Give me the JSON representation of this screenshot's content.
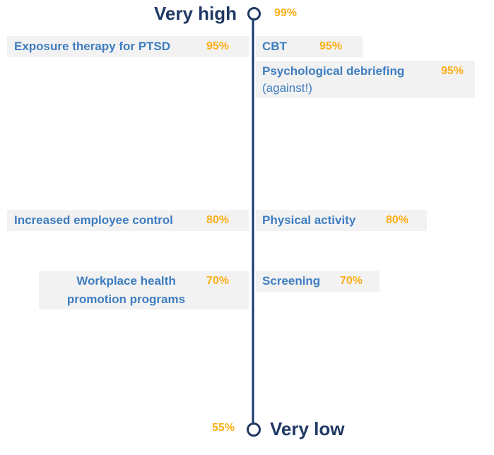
{
  "colors": {
    "navy": "#1F3864",
    "blue": "#3E7DC1",
    "orange": "#FCAE17",
    "row_background": "#F2F2F2"
  },
  "scale": {
    "top_label": "Very high",
    "top_value": "99%",
    "bottom_label": "Very low",
    "bottom_value": "55%"
  },
  "items": [
    {
      "label": "Exposure therapy for PTSD",
      "value": "95%",
      "side": "left"
    },
    {
      "label": "CBT",
      "value": "95%",
      "side": "right"
    },
    {
      "label": "Psychological debriefing",
      "note": "(against!)",
      "value": "95%",
      "side": "right"
    },
    {
      "label": "Increased employee control",
      "value": "80%",
      "side": "left"
    },
    {
      "label": "Physical activity",
      "value": "80%",
      "side": "right"
    },
    {
      "label": "Workplace health",
      "label_line2": "promotion programs",
      "value": "70%",
      "side": "left"
    },
    {
      "label": "Screening",
      "value": "70%",
      "side": "right"
    }
  ],
  "chart_data": {
    "type": "scatter",
    "title": "",
    "orientation": "vertical-axis-ladder",
    "axis_top_label": "Very high",
    "axis_bottom_label": "Very low",
    "value_range": [
      55,
      99
    ],
    "axis_top_value": 99,
    "axis_bottom_value": 55,
    "grid": false,
    "legend": "none",
    "points": [
      {
        "label": "Exposure therapy for PTSD",
        "value": 95,
        "side": "left"
      },
      {
        "label": "CBT",
        "value": 95,
        "side": "right"
      },
      {
        "label": "Psychological debriefing (against!)",
        "value": 95,
        "side": "right"
      },
      {
        "label": "Increased employee control",
        "value": 80,
        "side": "left"
      },
      {
        "label": "Physical activity",
        "value": 80,
        "side": "right"
      },
      {
        "label": "Workplace health promotion programs",
        "value": 70,
        "side": "left"
      },
      {
        "label": "Screening",
        "value": 70,
        "side": "right"
      }
    ]
  }
}
